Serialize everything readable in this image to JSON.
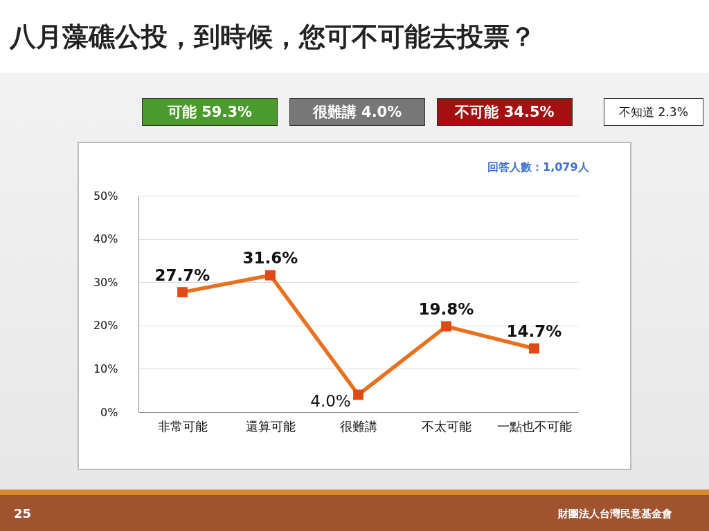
{
  "chart_data": {
    "type": "line",
    "title": "八月藻礁公投，到時候，您可不可能去投票？",
    "annotations": [
      "可能 59.3%",
      "很難講 4.0%",
      "不可能 34.5%",
      "不知道 2.3%",
      "回答人數：1,079人",
      "25",
      "財團法人台灣民意基金會"
    ],
    "categories": [
      "非常可能",
      "還算可能",
      "很難講",
      "不太可能",
      "一點也不可能"
    ],
    "series": [
      {
        "color": "#e8701e",
        "values": [
          27.7,
          31.6,
          4.0,
          19.8,
          14.7
        ],
        "value_labels": [
          "27.7%",
          "31.6%",
          "4.0%",
          "19.8%",
          "14.7%"
        ]
      }
    ],
    "ylim": [
      0,
      50
    ],
    "yticks": [
      {
        "value": 0,
        "label": "0%"
      },
      {
        "value": 10,
        "label": "10%"
      },
      {
        "value": 20,
        "label": "20%"
      },
      {
        "value": 30,
        "label": "30%"
      },
      {
        "value": 40,
        "label": "40%"
      },
      {
        "value": 50,
        "label": "50%"
      }
    ],
    "grid": "y",
    "legend": false,
    "marker": "square",
    "line_style": "solid"
  }
}
